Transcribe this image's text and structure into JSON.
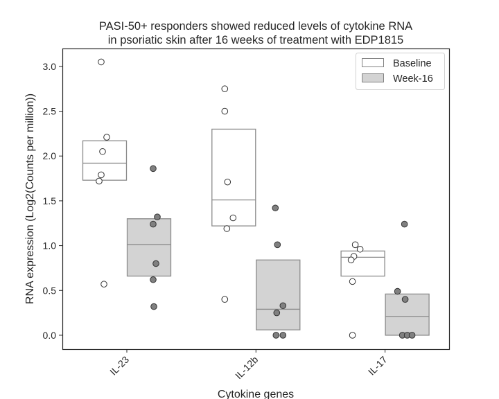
{
  "chart_data": {
    "type": "box",
    "title_lines": [
      "PASI-50+ responders showed reduced levels of cytokine RNA",
      "in psoriatic skin after 16 weeks of treatment with EDP1815"
    ],
    "xlabel": "Cytokine genes",
    "ylabel": "RNA expression (Log2(Counts per million))",
    "ylim": [
      -0.155,
      3.2
    ],
    "yticks": [
      0.0,
      0.5,
      1.0,
      1.5,
      2.0,
      2.5,
      3.0
    ],
    "ytick_labels": [
      "0.0",
      "0.5",
      "1.0",
      "1.5",
      "2.0",
      "2.5",
      "3.0"
    ],
    "categories": [
      "IL-23",
      "IL-12b",
      "IL-17"
    ],
    "grid": false,
    "legend_placement": "top-right",
    "series": [
      {
        "name": "Baseline",
        "box_color": "#ffffff",
        "point_color": "#ffffff",
        "boxes": [
          {
            "q1": 1.73,
            "median": 1.92,
            "q3": 2.17
          },
          {
            "q1": 1.22,
            "median": 1.51,
            "q3": 2.3
          },
          {
            "q1": 0.66,
            "median": 0.87,
            "q3": 0.94
          }
        ],
        "points": [
          [
            3.05,
            2.21,
            2.05,
            1.79,
            1.72,
            0.57
          ],
          [
            2.75,
            2.5,
            1.71,
            1.31,
            1.19,
            0.4
          ],
          [
            1.01,
            0.96,
            0.88,
            0.84,
            0.6,
            0.0
          ]
        ]
      },
      {
        "name": "Week-16",
        "box_color": "#d3d3d3",
        "point_color": "#808080",
        "boxes": [
          {
            "q1": 0.66,
            "median": 1.01,
            "q3": 1.3
          },
          {
            "q1": 0.06,
            "median": 0.29,
            "q3": 0.84
          },
          {
            "q1": 0.0,
            "median": 0.21,
            "q3": 0.46
          }
        ],
        "points": [
          [
            1.86,
            1.32,
            1.24,
            0.8,
            0.62,
            0.32
          ],
          [
            1.42,
            1.01,
            0.33,
            0.25,
            0.0,
            0.0
          ],
          [
            1.24,
            0.49,
            0.4,
            0.0,
            0.0,
            0.0
          ]
        ]
      }
    ]
  }
}
